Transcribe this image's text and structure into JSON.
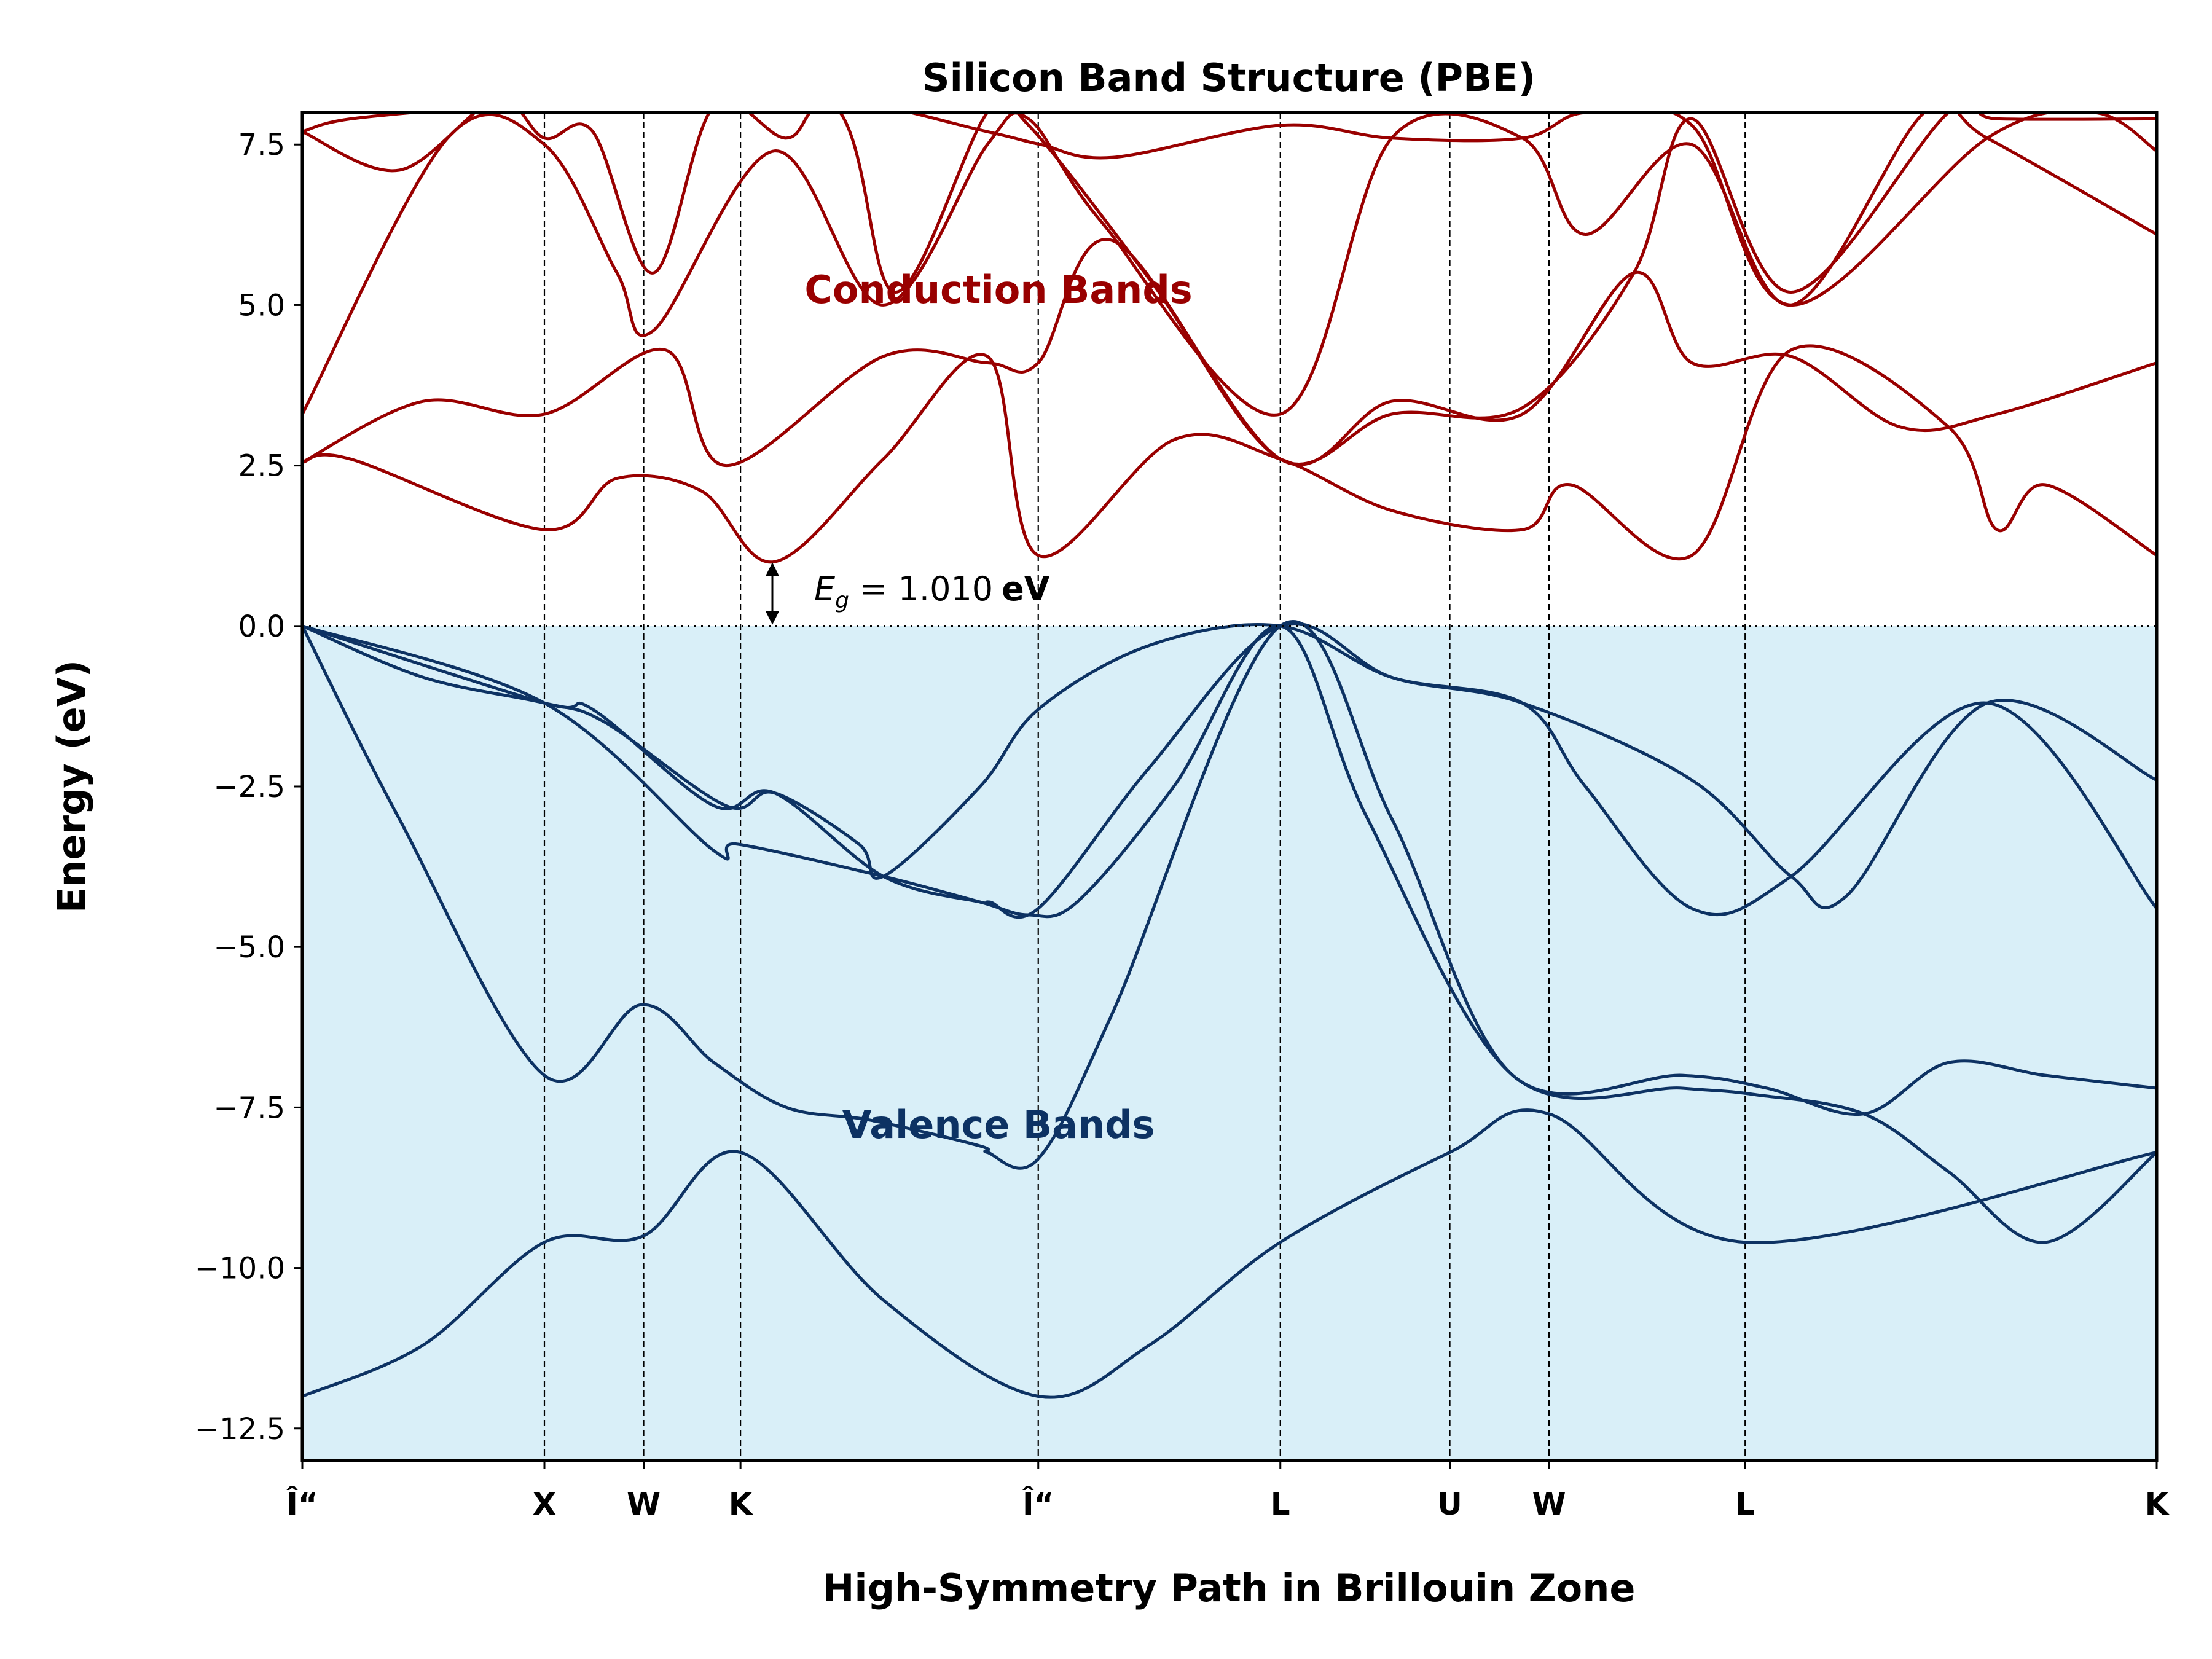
{
  "chart_data": {
    "type": "line",
    "title": "Silicon Band Structure (PBE)",
    "xlabel": "High-Symmetry Path in Brillouin Zone",
    "ylabel": "Energy (eV)",
    "ylim": [
      -13.0,
      8.0
    ],
    "y_ticks": [
      -12.5,
      -10.0,
      -7.5,
      -5.0,
      -2.5,
      0.0,
      2.5,
      5.0,
      7.5
    ],
    "y_tick_labels": [
      "−12.5",
      "−10.0",
      "−7.5",
      "−5.0",
      "−2.5",
      "0.0",
      "2.5",
      "5.0",
      "7.5"
    ],
    "kpath": {
      "labels": [
        "Î“",
        "X",
        "W",
        "K",
        "Î“",
        "L",
        "U",
        "W",
        "L",
        "K"
      ],
      "distances": [
        0.0,
        1.0,
        1.41,
        1.81,
        3.04,
        4.04,
        4.74,
        5.15,
        5.96,
        7.66
      ]
    },
    "grid": "vertical dashed at high-symmetry points",
    "fermi_level": 0.0,
    "valence_fill_color": "#d9eff8",
    "valence_color": "#0d3263",
    "conduction_color": "#990000",
    "annotations": {
      "conduction": "Conduction Bands",
      "valence": "Valence Bands",
      "gap_value": 1.01,
      "gap_symbol": "E",
      "gap_subscript": "g",
      "gap_equals": " = ",
      "gap_number": "1.010",
      "gap_unit": "eV"
    },
    "series": [
      {
        "group": "valence",
        "points": [
          [
            0.0,
            -12.0
          ],
          [
            0.5,
            -11.2
          ],
          [
            1.0,
            -9.6
          ],
          [
            1.41,
            -9.5
          ],
          [
            1.81,
            -8.2
          ],
          [
            2.4,
            -10.5
          ],
          [
            3.04,
            -12.0
          ],
          [
            3.5,
            -11.2
          ],
          [
            4.04,
            -9.6
          ],
          [
            4.74,
            -8.2
          ],
          [
            5.15,
            -7.6
          ],
          [
            5.96,
            -9.6
          ],
          [
            7.66,
            -8.2
          ]
        ]
      },
      {
        "group": "valence",
        "points": [
          [
            0.0,
            0.0
          ],
          [
            0.4,
            -3.0
          ],
          [
            1.0,
            -7.0
          ],
          [
            1.4,
            -5.9
          ],
          [
            1.7,
            -6.8
          ],
          [
            2.0,
            -7.5
          ],
          [
            2.35,
            -7.7
          ],
          [
            2.8,
            -8.1
          ],
          [
            2.83,
            -8.2
          ],
          [
            3.04,
            -8.3
          ],
          [
            3.35,
            -6.0
          ],
          [
            4.04,
            0.0
          ],
          [
            4.5,
            -3.0
          ],
          [
            5.0,
            -7.0
          ],
          [
            5.7,
            -7.0
          ],
          [
            6.05,
            -7.2
          ],
          [
            6.45,
            -7.6
          ],
          [
            6.8,
            -6.8
          ],
          [
            7.2,
            -7.0
          ],
          [
            7.66,
            -7.2
          ]
        ]
      },
      {
        "group": "valence",
        "points": [
          [
            0.0,
            0.0
          ],
          [
            1.0,
            -1.2
          ],
          [
            1.7,
            -3.5
          ],
          [
            1.8,
            -3.4
          ],
          [
            2.4,
            -3.9
          ],
          [
            2.8,
            -4.3
          ],
          [
            3.0,
            -4.5
          ],
          [
            3.2,
            -4.3
          ],
          [
            3.6,
            -2.5
          ],
          [
            4.04,
            0.0
          ],
          [
            4.4,
            -3.0
          ],
          [
            5.0,
            -7.0
          ],
          [
            5.7,
            -7.2
          ],
          [
            6.0,
            -7.3
          ],
          [
            6.45,
            -7.6
          ],
          [
            6.8,
            -8.5
          ],
          [
            7.2,
            -9.6
          ],
          [
            7.66,
            -8.2
          ]
        ]
      },
      {
        "group": "valence",
        "points": [
          [
            0.0,
            0.0
          ],
          [
            0.5,
            -0.8
          ],
          [
            1.0,
            -1.2
          ],
          [
            1.25,
            -1.5
          ],
          [
            1.75,
            -2.8
          ],
          [
            1.95,
            -2.6
          ],
          [
            2.3,
            -3.4
          ],
          [
            2.4,
            -3.9
          ],
          [
            2.8,
            -2.5
          ],
          [
            3.04,
            -1.3
          ],
          [
            3.5,
            -0.3
          ],
          [
            4.04,
            0.0
          ],
          [
            4.5,
            -0.8
          ],
          [
            5.04,
            -1.2
          ],
          [
            5.74,
            -2.4
          ],
          [
            6.15,
            -3.9
          ],
          [
            6.38,
            -4.2
          ],
          [
            6.96,
            -1.2
          ],
          [
            7.66,
            -2.4
          ]
        ]
      },
      {
        "group": "valence",
        "points": [
          [
            0.0,
            0.0
          ],
          [
            1.0,
            -1.2
          ],
          [
            1.2,
            -1.3
          ],
          [
            1.7,
            -2.8
          ],
          [
            1.95,
            -2.6
          ],
          [
            2.4,
            -3.9
          ],
          [
            2.8,
            -4.3
          ],
          [
            2.84,
            -4.3
          ],
          [
            3.04,
            -4.4
          ],
          [
            3.5,
            -2.2
          ],
          [
            4.04,
            0.0
          ],
          [
            4.5,
            -0.8
          ],
          [
            5.04,
            -1.2
          ],
          [
            5.3,
            -2.5
          ],
          [
            5.74,
            -4.4
          ],
          [
            6.15,
            -3.9
          ],
          [
            6.96,
            -1.2
          ],
          [
            7.66,
            -4.4
          ]
        ]
      },
      {
        "group": "conduction",
        "points": [
          [
            0.0,
            2.55
          ],
          [
            0.2,
            2.6
          ],
          [
            1.0,
            1.5
          ],
          [
            1.3,
            2.3
          ],
          [
            1.65,
            2.1
          ],
          [
            1.95,
            1.0
          ],
          [
            2.4,
            2.6
          ],
          [
            2.83,
            4.2
          ],
          [
            3.04,
            1.1
          ],
          [
            3.6,
            2.9
          ],
          [
            4.04,
            2.6
          ],
          [
            4.5,
            1.8
          ],
          [
            5.04,
            1.5
          ],
          [
            5.24,
            2.2
          ],
          [
            5.74,
            1.1
          ],
          [
            6.15,
            4.3
          ],
          [
            6.8,
            3.1
          ],
          [
            7.0,
            1.5
          ],
          [
            7.2,
            2.2
          ],
          [
            7.66,
            1.1
          ]
        ]
      },
      {
        "group": "conduction",
        "points": [
          [
            0.0,
            2.55
          ],
          [
            0.5,
            3.5
          ],
          [
            1.0,
            3.3
          ],
          [
            1.5,
            4.3
          ],
          [
            1.75,
            2.5
          ],
          [
            2.4,
            4.2
          ],
          [
            2.83,
            4.1
          ],
          [
            3.04,
            4.1
          ],
          [
            3.35,
            6.0
          ],
          [
            4.04,
            2.6
          ],
          [
            4.5,
            3.5
          ],
          [
            5.04,
            3.3
          ],
          [
            5.5,
            5.5
          ],
          [
            5.74,
            4.1
          ],
          [
            6.15,
            4.2
          ],
          [
            6.6,
            3.1
          ],
          [
            7.0,
            3.3
          ],
          [
            7.66,
            4.1
          ]
        ]
      },
      {
        "group": "conduction",
        "points": [
          [
            0.0,
            3.3
          ],
          [
            0.6,
            7.6
          ],
          [
            1.0,
            7.5
          ],
          [
            1.3,
            5.5
          ],
          [
            1.45,
            4.6
          ],
          [
            1.95,
            7.4
          ],
          [
            2.4,
            5.0
          ],
          [
            2.83,
            7.5
          ],
          [
            3.0,
            7.9
          ],
          [
            3.3,
            6.3
          ],
          [
            4.04,
            3.3
          ],
          [
            4.5,
            7.6
          ],
          [
            5.04,
            7.6
          ],
          [
            5.3,
            6.1
          ],
          [
            5.74,
            7.5
          ],
          [
            6.15,
            5.0
          ],
          [
            6.7,
            8.0
          ],
          [
            6.96,
            7.6
          ],
          [
            7.66,
            6.1
          ]
        ]
      },
      {
        "group": "conduction",
        "points": [
          [
            0.0,
            7.7
          ],
          [
            0.4,
            7.1
          ],
          [
            0.8,
            8.2
          ],
          [
            1.0,
            7.6
          ],
          [
            1.2,
            7.7
          ],
          [
            1.45,
            5.5
          ],
          [
            1.7,
            8.1
          ],
          [
            2.0,
            7.6
          ],
          [
            2.2,
            8.2
          ],
          [
            2.83,
            7.7
          ],
          [
            3.05,
            7.5
          ],
          [
            3.35,
            7.3
          ],
          [
            4.04,
            7.8
          ],
          [
            4.5,
            7.6
          ],
          [
            5.04,
            7.6
          ],
          [
            5.3,
            8.0
          ],
          [
            5.74,
            7.8
          ],
          [
            6.15,
            5.0
          ],
          [
            6.96,
            7.6
          ],
          [
            7.4,
            8.0
          ],
          [
            7.66,
            7.4
          ]
        ]
      },
      {
        "group": "conduction",
        "points": [
          [
            0.0,
            7.7
          ],
          [
            0.2,
            7.9
          ],
          [
            0.8,
            8.1
          ],
          [
            1.3,
            8.2
          ],
          [
            1.6,
            8.2
          ],
          [
            2.2,
            8.1
          ],
          [
            2.45,
            5.2
          ],
          [
            2.83,
            8.0
          ],
          [
            3.0,
            7.8
          ],
          [
            3.5,
            5.4
          ],
          [
            4.04,
            2.6
          ],
          [
            4.5,
            3.3
          ],
          [
            5.04,
            3.4
          ],
          [
            5.5,
            5.5
          ],
          [
            5.74,
            7.9
          ],
          [
            6.15,
            5.2
          ],
          [
            6.8,
            8.0
          ],
          [
            7.0,
            7.9
          ],
          [
            7.66,
            7.9
          ]
        ]
      }
    ]
  }
}
